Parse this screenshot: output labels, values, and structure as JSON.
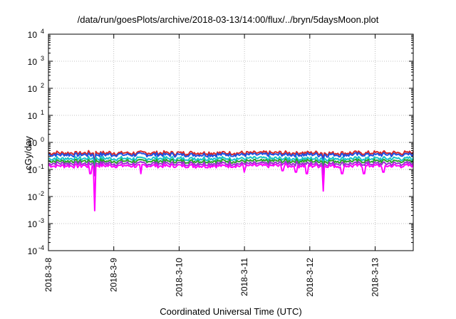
{
  "chart_data": {
    "type": "line",
    "title": "/data/run/goesPlots/archive/2018-03-13/14:00/flux/../bryn/5daysMoon.plot",
    "xlabel": "Coordinated Universal Time (UTC)",
    "ylabel": "cGy/day",
    "y_scale": "log",
    "ylim": [
      0.0001,
      10000
    ],
    "y_ticks": [
      {
        "value": 0.0001,
        "base": "10",
        "exp": "-4"
      },
      {
        "value": 0.001,
        "base": "10",
        "exp": "-3"
      },
      {
        "value": 0.01,
        "base": "10",
        "exp": "-2"
      },
      {
        "value": 0.1,
        "base": "10",
        "exp": "-1"
      },
      {
        "value": 1,
        "base": "10",
        "exp": "0"
      },
      {
        "value": 10,
        "base": "10",
        "exp": "1"
      },
      {
        "value": 100,
        "base": "10",
        "exp": "2"
      },
      {
        "value": 1000,
        "base": "10",
        "exp": "3"
      },
      {
        "value": 10000,
        "base": "10",
        "exp": "4"
      }
    ],
    "xlim": [
      "2018-03-08T00:00",
      "2018-03-13T14:00"
    ],
    "x_ticks": [
      "2018-3-8",
      "2018-3-9",
      "2018-3-10",
      "2018-3-11",
      "2018-3-12",
      "2018-3-13"
    ],
    "grid": true,
    "series": [
      {
        "color": "#d62728",
        "level": 0.42
      },
      {
        "color": "#1f4fe0",
        "level": 0.36
      },
      {
        "color": "#17c3c8",
        "level": 0.26
      },
      {
        "color": "#2ca02c",
        "level": 0.21
      },
      {
        "color": "#9b30d0",
        "level": 0.17
      },
      {
        "color": "#ff00ff",
        "level": 0.14
      }
    ],
    "dips": [
      {
        "x": "2018-03-08T17:00",
        "value": 0.003
      },
      {
        "x": "2018-03-08T15:30",
        "value": 0.07
      },
      {
        "x": "2018-03-09T10:00",
        "value": 0.07
      },
      {
        "x": "2018-03-11T00:00",
        "value": 0.08
      },
      {
        "x": "2018-03-11T14:00",
        "value": 0.09
      },
      {
        "x": "2018-03-11T19:00",
        "value": 0.08
      },
      {
        "x": "2018-03-11T23:00",
        "value": 0.07
      },
      {
        "x": "2018-03-12T05:00",
        "value": 0.016
      },
      {
        "x": "2018-03-12T12:00",
        "value": 0.07
      },
      {
        "x": "2018-03-12T20:00",
        "value": 0.07
      },
      {
        "x": "2018-03-13T03:00",
        "value": 0.08
      }
    ]
  }
}
